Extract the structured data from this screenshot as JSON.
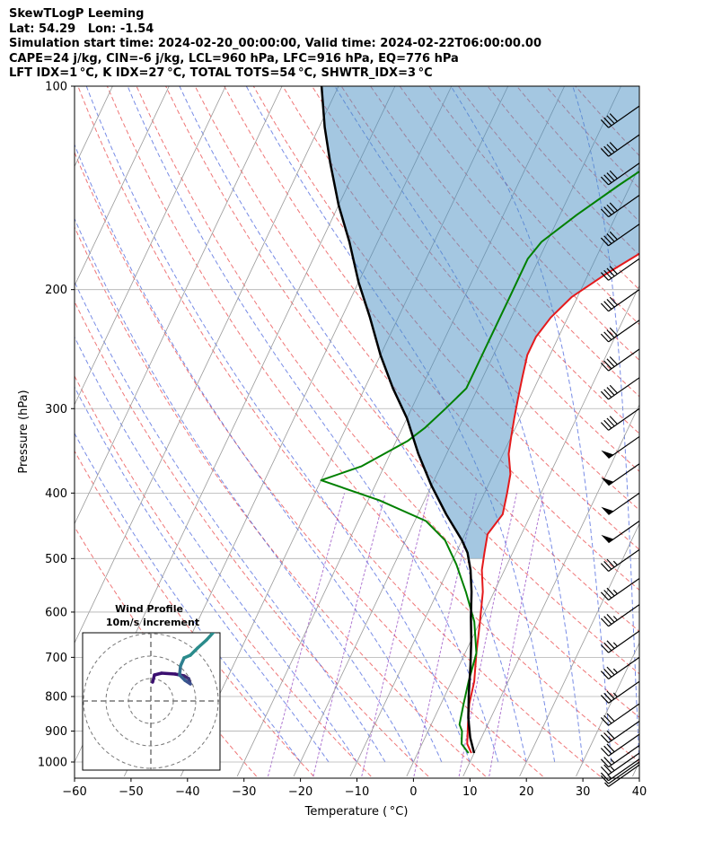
{
  "header": {
    "line1": "SkewTLogP Leeming",
    "line2": "Lat: 54.29   Lon: -1.54",
    "line3": "Simulation start time: 2024-02-20_00:00:00, Valid time: 2024-02-22T06:00:00.00",
    "line4": "CAPE=24 j/kg, CIN=-6 j/kg, LCL=960 hPa, LFC=916 hPa, EQ=776 hPa",
    "line5": "LFT IDX=1 °C, K IDX=27 °C, TOTAL TOTS=54 °C, SHWTR_IDX=3 °C"
  },
  "inset": {
    "title": "Wind Profile",
    "subtitle": "10m/s increment"
  },
  "colors": {
    "temperature": "#e41a1c",
    "dewpoint": "#008000",
    "parcel": "#000000",
    "cape_fill": "#4a90c4",
    "dry_adiabat": "#e41a1c",
    "moist_adiabat": "#2f4fd8",
    "mixing_ratio": "#8e3fbf",
    "isotherm": "#999999",
    "grid": "#b0b0b0"
  },
  "chart_data": {
    "type": "line",
    "title": "SkewTLogP Leeming",
    "xlabel": "Temperature ( °C)",
    "ylabel": "Pressure (hPa)",
    "xlim": [
      -60,
      40
    ],
    "ylim": [
      1040,
      100
    ],
    "y_scale": "log",
    "grid": true,
    "x_ticks": [
      -60,
      -50,
      -40,
      -30,
      -20,
      -10,
      0,
      10,
      20,
      30,
      40
    ],
    "x_tick_labels": [
      "−60",
      "−50",
      "−40",
      "−30",
      "−20",
      "−10",
      "0",
      "10",
      "20",
      "30",
      "40"
    ],
    "y_ticks": [
      1000,
      900,
      800,
      700,
      600,
      500,
      400,
      300,
      200,
      100
    ],
    "series": [
      {
        "key": "temperature",
        "points": [
          [
            9.5,
            970
          ],
          [
            8,
            940
          ],
          [
            6.5,
            880
          ],
          [
            5,
            820
          ],
          [
            4,
            760
          ],
          [
            2,
            690
          ],
          [
            0,
            620
          ],
          [
            -2,
            560
          ],
          [
            -4,
            520
          ],
          [
            -5,
            490
          ],
          [
            -6,
            460
          ],
          [
            -5,
            430
          ],
          [
            -6,
            400
          ],
          [
            -7,
            375
          ],
          [
            -9,
            350
          ],
          [
            -10,
            330
          ],
          [
            -11,
            310
          ],
          [
            -12,
            290
          ],
          [
            -13,
            270
          ],
          [
            -14,
            250
          ],
          [
            -14,
            235
          ],
          [
            -13,
            220
          ],
          [
            -11,
            205
          ],
          [
            -7,
            190
          ],
          [
            -2,
            175
          ],
          [
            3,
            160
          ],
          [
            5,
            150
          ],
          [
            6,
            140
          ],
          [
            6,
            130
          ],
          [
            7,
            120
          ],
          [
            8,
            112
          ],
          [
            9,
            106
          ],
          [
            10,
            100
          ]
        ]
      },
      {
        "key": "dewpoint",
        "points": [
          [
            9,
            970
          ],
          [
            7,
            940
          ],
          [
            6,
            900
          ],
          [
            5,
            880
          ],
          [
            4,
            820
          ],
          [
            3,
            760
          ],
          [
            2,
            690
          ],
          [
            -1,
            620
          ],
          [
            -5,
            560
          ],
          [
            -9,
            510
          ],
          [
            -13,
            470
          ],
          [
            -18,
            440
          ],
          [
            -28,
            410
          ],
          [
            -40,
            383
          ],
          [
            -34,
            365
          ],
          [
            -28,
            335
          ],
          [
            -26,
            320
          ],
          [
            -24,
            300
          ],
          [
            -22,
            280
          ],
          [
            -22,
            260
          ],
          [
            -22,
            245
          ],
          [
            -22,
            230
          ],
          [
            -22,
            215
          ],
          [
            -22,
            205
          ],
          [
            -22,
            190
          ],
          [
            -22,
            180
          ],
          [
            -21,
            170
          ],
          [
            -17,
            155
          ],
          [
            -12,
            140
          ],
          [
            -6,
            125
          ],
          [
            0,
            112
          ],
          [
            4,
            100
          ]
        ]
      },
      {
        "key": "parcel",
        "points": [
          [
            10,
            970
          ],
          [
            8,
            920
          ],
          [
            6,
            860
          ],
          [
            4,
            790
          ],
          [
            2,
            720
          ],
          [
            0,
            660
          ],
          [
            -2,
            610
          ],
          [
            -4,
            560
          ],
          [
            -6,
            520
          ],
          [
            -8,
            490
          ],
          [
            -10,
            470
          ],
          [
            -15,
            430
          ],
          [
            -20,
            390
          ],
          [
            -25,
            350
          ],
          [
            -30,
            310
          ],
          [
            -35,
            280
          ],
          [
            -40,
            250
          ],
          [
            -45,
            220
          ],
          [
            -50,
            195
          ],
          [
            -55,
            170
          ],
          [
            -60,
            150
          ],
          [
            -65,
            130
          ],
          [
            -69,
            115
          ],
          [
            -73,
            100
          ]
        ]
      }
    ],
    "cape_region": {
      "pressure_bottom": 500,
      "pressure_top": 100
    },
    "wind_barbs": {
      "pressures": [
        1010,
        1000,
        990,
        970,
        945,
        910,
        870,
        820,
        760,
        700,
        640,
        585,
        535,
        485,
        440,
        400,
        362,
        330,
        300,
        270,
        245,
        222,
        200,
        180,
        160,
        145,
        130,
        118,
        107
      ],
      "speeds_kt": [
        5,
        10,
        15,
        25,
        25,
        30,
        30,
        30,
        35,
        35,
        35,
        35,
        35,
        35,
        50,
        50,
        50,
        50,
        40,
        40,
        40,
        40,
        40,
        40,
        40,
        40,
        40,
        40,
        40
      ]
    }
  }
}
